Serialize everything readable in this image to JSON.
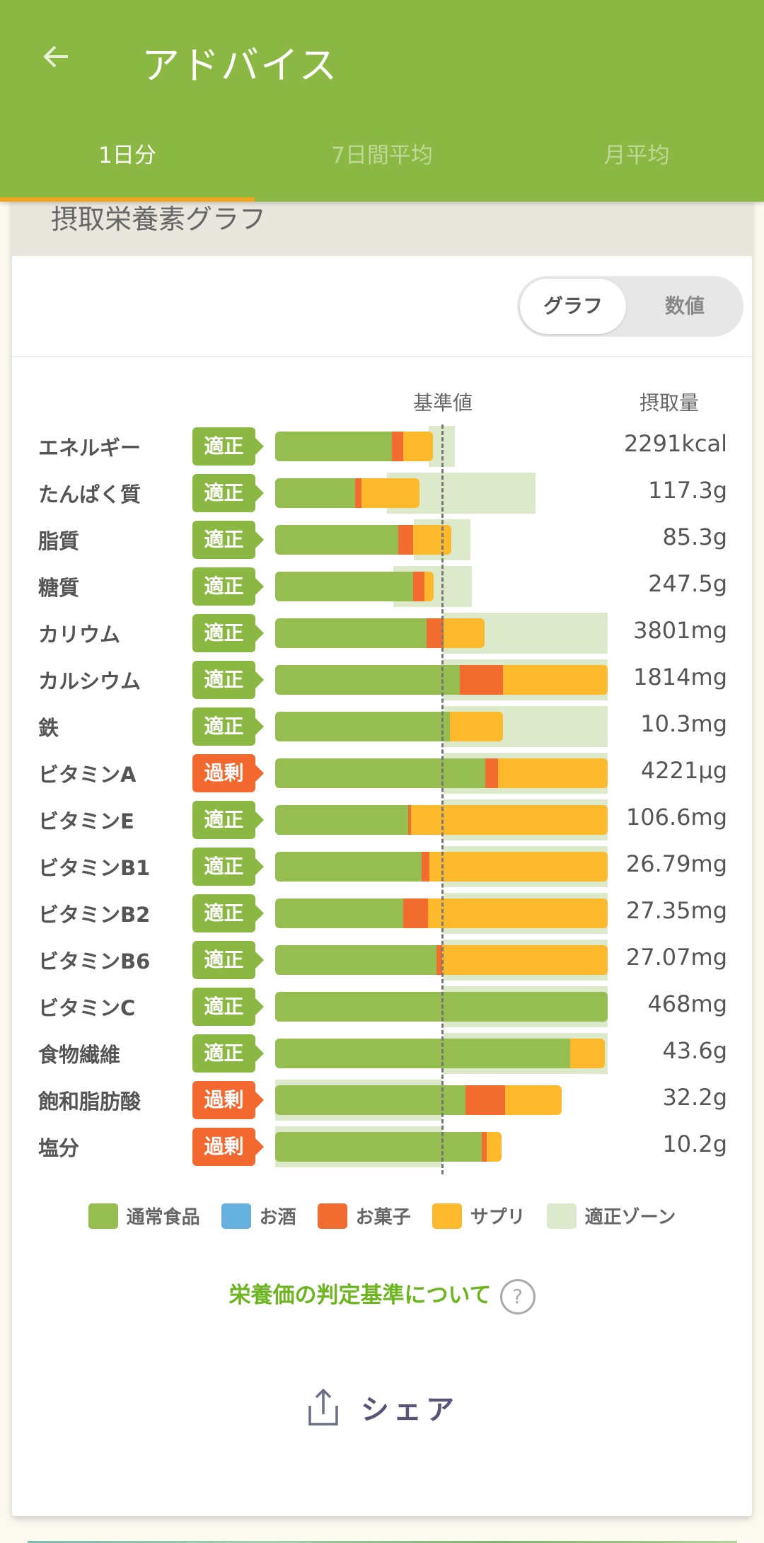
{
  "appbar": {
    "title": "アドバイス",
    "back_icon": "arrow-left-icon",
    "tabs": [
      {
        "label": "1日分",
        "active": true
      },
      {
        "label": "7日間平均",
        "active": false
      },
      {
        "label": "月平均",
        "active": false
      }
    ]
  },
  "card": {
    "title": "摂取栄養素グラフ",
    "toggle": {
      "graph": "グラフ",
      "numeric": "数値",
      "selected": "グラフ"
    },
    "col_reference": "基準値",
    "col_amount": "摂取量"
  },
  "colors": {
    "regular": "#95bd50",
    "alcohol": "#66b0e0",
    "sweets": "#f26b2f",
    "supplement": "#fdb92c",
    "zone": "#dce9cb",
    "ok_badge": "#8ab843",
    "over_badge": "#f2682f"
  },
  "chart_data": {
    "type": "bar",
    "orientation": "horizontal-stacked",
    "title": "摂取栄養素グラフ",
    "reference_fraction": 0.5,
    "scale_note": "values are fractions of full bar width; reference (基準値) at 0.5",
    "series_names": [
      "通常食品",
      "お酒",
      "お菓子",
      "サプリ"
    ],
    "rows": [
      {
        "name": "エネルギー",
        "status": "適正",
        "amount": "2291kcal",
        "regular": 0.351,
        "alcohol": 0,
        "sweets": 0.034,
        "supplement": 0.089,
        "zone": [
          0.462,
          0.54
        ]
      },
      {
        "name": "たんぱく質",
        "status": "適正",
        "amount": "117.3g",
        "regular": 0.24,
        "alcohol": 0,
        "sweets": 0.02,
        "supplement": 0.174,
        "zone": [
          0.336,
          0.783
        ]
      },
      {
        "name": "脂質",
        "status": "適正",
        "amount": "85.3g",
        "regular": 0.37,
        "alcohol": 0,
        "sweets": 0.045,
        "supplement": 0.115,
        "zone": [
          0.417,
          0.587
        ]
      },
      {
        "name": "糖質",
        "status": "適正",
        "amount": "247.5g",
        "regular": 0.415,
        "alcohol": 0,
        "sweets": 0.034,
        "supplement": 0.028,
        "zone": [
          0.355,
          0.591
        ]
      },
      {
        "name": "カリウム",
        "status": "適正",
        "amount": "3801mg",
        "regular": 0.455,
        "alcohol": 0,
        "sweets": 0.051,
        "supplement": 0.124,
        "zone": [
          0.506,
          1.0
        ]
      },
      {
        "name": "カルシウム",
        "status": "適正",
        "amount": "1814mg",
        "regular": 0.555,
        "alcohol": 0,
        "sweets": 0.13,
        "supplement": 0.315,
        "zone": [
          0.506,
          1.0
        ]
      },
      {
        "name": "鉄",
        "status": "適正",
        "amount": "10.3mg",
        "regular": 0.526,
        "alcohol": 0,
        "sweets": 0,
        "supplement": 0.159,
        "zone": [
          0.506,
          1.0
        ]
      },
      {
        "name": "ビタミンA",
        "status": "過剰",
        "amount": "4221μg",
        "regular": 0.632,
        "alcohol": 0,
        "sweets": 0.038,
        "supplement": 0.33,
        "zone": [
          0.506,
          1.0
        ]
      },
      {
        "name": "ビタミンE",
        "status": "適正",
        "amount": "106.6mg",
        "regular": 0.4,
        "alcohol": 0,
        "sweets": 0.009,
        "supplement": 0.591,
        "zone": [
          0.506,
          1.0
        ]
      },
      {
        "name": "ビタミンB1",
        "status": "適正",
        "amount": "26.79mg",
        "regular": 0.44,
        "alcohol": 0,
        "sweets": 0.024,
        "supplement": 0.536,
        "zone": [
          0.506,
          1.0
        ]
      },
      {
        "name": "ビタミンB2",
        "status": "適正",
        "amount": "27.35mg",
        "regular": 0.385,
        "alcohol": 0,
        "sweets": 0.075,
        "supplement": 0.54,
        "zone": [
          0.506,
          1.0
        ]
      },
      {
        "name": "ビタミンB6",
        "status": "適正",
        "amount": "27.07mg",
        "regular": 0.485,
        "alcohol": 0,
        "sweets": 0.017,
        "supplement": 0.498,
        "zone": [
          0.506,
          1.0
        ]
      },
      {
        "name": "ビタミンC",
        "status": "適正",
        "amount": "468mg",
        "regular": 1.0,
        "alcohol": 0,
        "sweets": 0,
        "supplement": 0,
        "zone": [
          0.506,
          1.0
        ]
      },
      {
        "name": "食物繊維",
        "status": "適正",
        "amount": "43.6g",
        "regular": 0.887,
        "alcohol": 0,
        "sweets": 0,
        "supplement": 0.104,
        "zone": [
          0.506,
          1.0
        ]
      },
      {
        "name": "飽和脂肪酸",
        "status": "過剰",
        "amount": "32.2g",
        "regular": 0.572,
        "alcohol": 0,
        "sweets": 0.119,
        "supplement": 0.171,
        "zone": [
          0.0,
          0.502
        ]
      },
      {
        "name": "塩分",
        "status": "過剰",
        "amount": "10.2g",
        "regular": 0.621,
        "alcohol": 0,
        "sweets": 0.015,
        "supplement": 0.045,
        "zone": [
          0.0,
          0.502
        ]
      }
    ],
    "legend": [
      {
        "label": "通常食品",
        "key": "regular"
      },
      {
        "label": "お酒",
        "key": "alcohol"
      },
      {
        "label": "お菓子",
        "key": "sweets"
      },
      {
        "label": "サプリ",
        "key": "supplement"
      },
      {
        "label": "適正ゾーン",
        "key": "zone"
      }
    ],
    "legend_position": "bottom"
  },
  "footer": {
    "criteria_link": "栄養価の判定基準について",
    "help_icon": "?",
    "share_label": "シェア"
  }
}
